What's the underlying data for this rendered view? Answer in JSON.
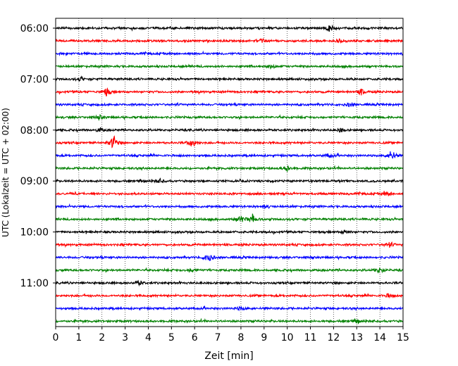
{
  "chart_data": {
    "type": "line",
    "xlabel": "Zeit  [min]",
    "ylabel": "UTC (Lokalzeit = UTC + 02:00)",
    "xlim": [
      0,
      15
    ],
    "x_ticks": [
      "0",
      "1",
      "2",
      "3",
      "4",
      "5",
      "6",
      "7",
      "8",
      "9",
      "10",
      "11",
      "12",
      "13",
      "14",
      "15"
    ],
    "y_tick_labels": [
      "06:00",
      "07:00",
      "08:00",
      "09:00",
      "10:00",
      "11:00"
    ],
    "grid": "vertical dotted at each minute",
    "trace_colors": [
      "#000000",
      "#ff0000",
      "#0000ff",
      "#008000"
    ],
    "rows": [
      {
        "start": "06:00",
        "color": "#000000",
        "events": [
          {
            "t": 11.8,
            "amp": 0.5
          }
        ]
      },
      {
        "start": "06:15",
        "color": "#ff0000",
        "events": [
          {
            "t": 8.9,
            "amp": 0.4
          },
          {
            "t": 12.3,
            "amp": 0.3
          }
        ]
      },
      {
        "start": "06:30",
        "color": "#0000ff",
        "events": []
      },
      {
        "start": "06:45",
        "color": "#008000",
        "events": [
          {
            "t": 9.3,
            "amp": 0.3
          }
        ]
      },
      {
        "start": "07:00",
        "color": "#000000",
        "events": [
          {
            "t": 1.1,
            "amp": 0.3
          }
        ]
      },
      {
        "start": "07:15",
        "color": "#ff0000",
        "events": [
          {
            "t": 2.2,
            "amp": 0.7
          },
          {
            "t": 13.2,
            "amp": 0.5
          }
        ]
      },
      {
        "start": "07:30",
        "color": "#0000ff",
        "events": [
          {
            "t": 12.7,
            "amp": 0.3
          }
        ]
      },
      {
        "start": "07:45",
        "color": "#008000",
        "events": [
          {
            "t": 1.9,
            "amp": 0.3
          }
        ]
      },
      {
        "start": "08:00",
        "color": "#000000",
        "events": [
          {
            "t": 1.9,
            "amp": 0.3
          },
          {
            "t": 12.3,
            "amp": 0.3
          }
        ]
      },
      {
        "start": "08:15",
        "color": "#ff0000",
        "events": [
          {
            "t": 2.5,
            "amp": 1.2
          },
          {
            "t": 5.9,
            "amp": 0.8
          }
        ]
      },
      {
        "start": "08:30",
        "color": "#0000ff",
        "events": [
          {
            "t": 14.5,
            "amp": 0.9
          },
          {
            "t": 11.8,
            "amp": 0.3
          }
        ]
      },
      {
        "start": "08:45",
        "color": "#008000",
        "events": [
          {
            "t": 10.0,
            "amp": 0.5
          }
        ]
      },
      {
        "start": "09:00",
        "color": "#000000",
        "events": [
          {
            "t": 4.5,
            "amp": 0.3
          }
        ]
      },
      {
        "start": "09:15",
        "color": "#ff0000",
        "events": [
          {
            "t": 14.3,
            "amp": 0.4
          }
        ]
      },
      {
        "start": "09:30",
        "color": "#0000ff",
        "events": [
          {
            "t": 9.0,
            "amp": 0.3
          }
        ]
      },
      {
        "start": "09:45",
        "color": "#008000",
        "events": [
          {
            "t": 8.0,
            "amp": 0.6
          },
          {
            "t": 8.5,
            "amp": 0.7
          }
        ]
      },
      {
        "start": "10:00",
        "color": "#000000",
        "events": [
          {
            "t": 12.5,
            "amp": 0.3
          }
        ]
      },
      {
        "start": "10:15",
        "color": "#ff0000",
        "events": [
          {
            "t": 14.4,
            "amp": 0.4
          }
        ]
      },
      {
        "start": "10:30",
        "color": "#0000ff",
        "events": [
          {
            "t": 6.6,
            "amp": 0.8
          }
        ]
      },
      {
        "start": "10:45",
        "color": "#008000",
        "events": [
          {
            "t": 14.0,
            "amp": 0.5
          },
          {
            "t": 5.9,
            "amp": 0.3
          }
        ]
      },
      {
        "start": "11:00",
        "color": "#000000",
        "events": [
          {
            "t": 3.6,
            "amp": 0.3
          }
        ]
      },
      {
        "start": "11:15",
        "color": "#ff0000",
        "events": [
          {
            "t": 14.4,
            "amp": 0.3
          }
        ]
      },
      {
        "start": "11:30",
        "color": "#0000ff",
        "events": [
          {
            "t": 8.0,
            "amp": 0.3
          }
        ]
      },
      {
        "start": "11:45",
        "color": "#008000",
        "events": [
          {
            "t": 13.0,
            "amp": 0.3
          }
        ]
      }
    ]
  }
}
